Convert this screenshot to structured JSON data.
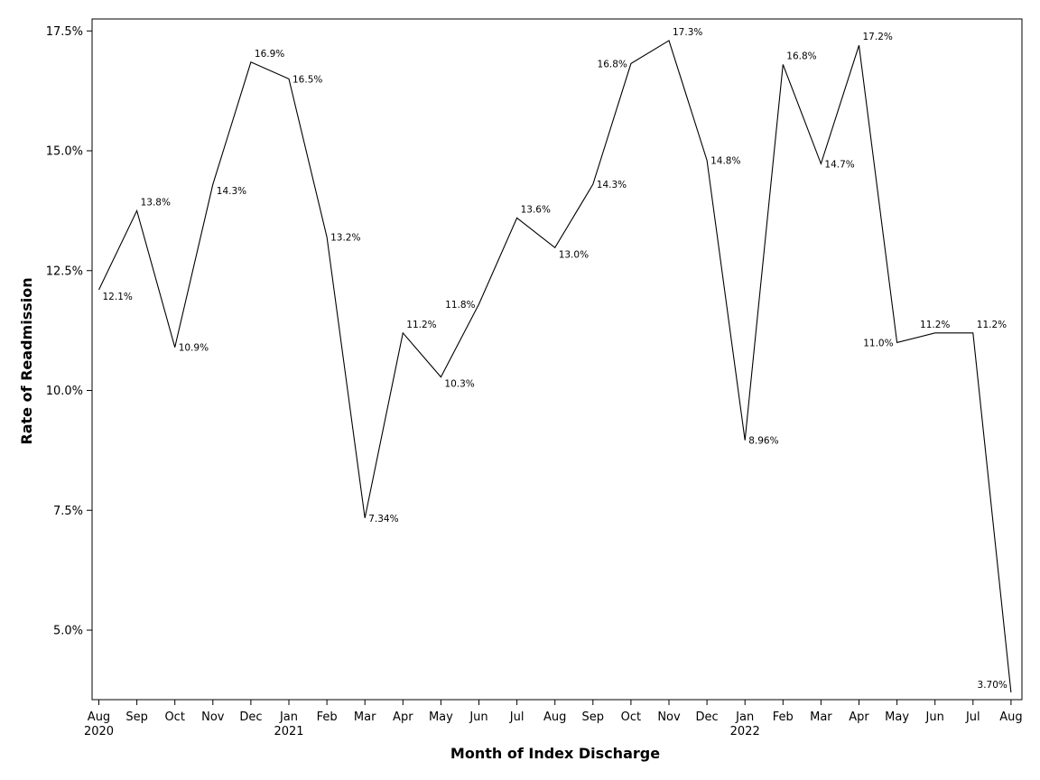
{
  "chart_data": {
    "type": "line",
    "title": "",
    "xlabel": "Month of Index Discharge",
    "ylabel": "Rate of Readmission",
    "x": [
      "2020-08",
      "2020-09",
      "2020-10",
      "2020-11",
      "2020-12",
      "2021-01",
      "2021-02",
      "2021-03",
      "2021-04",
      "2021-05",
      "2021-06",
      "2021-07",
      "2021-08",
      "2021-09",
      "2021-10",
      "2021-11",
      "2021-12",
      "2022-01",
      "2022-02",
      "2022-03",
      "2022-04",
      "2022-05",
      "2022-06",
      "2022-07",
      "2022-08"
    ],
    "x_tick_labels": [
      "Aug",
      "Sep",
      "Oct",
      "Nov",
      "Dec",
      "Jan",
      "Feb",
      "Mar",
      "Apr",
      "May",
      "Jun",
      "Jul",
      "Aug",
      "Sep",
      "Oct",
      "Nov",
      "Dec",
      "Jan",
      "Feb",
      "Mar",
      "Apr",
      "May",
      "Jun",
      "Jul",
      "Aug"
    ],
    "x_year_labels": [
      {
        "index": 0,
        "label": "2020"
      },
      {
        "index": 5,
        "label": "2021"
      },
      {
        "index": 17,
        "label": "2022"
      }
    ],
    "series": [
      {
        "values": [
          12.1,
          13.75,
          10.9,
          14.3,
          16.85,
          16.5,
          13.2,
          7.34,
          11.2,
          10.28,
          11.8,
          13.6,
          12.98,
          14.3,
          16.82,
          17.3,
          14.8,
          8.96,
          16.8,
          14.73,
          17.2,
          11.0,
          11.2,
          11.2,
          3.7
        ],
        "data_labels": [
          "12.1%",
          "13.8%",
          "10.9%",
          "14.3%",
          "16.9%",
          "16.5%",
          "13.2%",
          "7.34%",
          "11.2%",
          "10.3%",
          "11.8%",
          "13.6%",
          "13.0%",
          "14.3%",
          "16.8%",
          "17.3%",
          "14.8%",
          "8.96%",
          "16.8%",
          "14.7%",
          "17.2%",
          "11.0%",
          "11.2%",
          "11.2%",
          "3.70%"
        ],
        "label_positions": [
          "below-right",
          "above-right",
          "right",
          "below-right",
          "above-right",
          "right",
          "right",
          "right",
          "above-right",
          "below-right",
          "left",
          "above-right",
          "below-right",
          "right",
          "left",
          "above-right",
          "right",
          "right",
          "above-right",
          "right",
          "above-right",
          "left",
          "above",
          "above-right",
          "left"
        ],
        "color": "#000000"
      }
    ],
    "yticks": [
      5.0,
      7.5,
      10.0,
      12.5,
      15.0,
      17.5
    ],
    "ytick_labels": [
      "5.0%",
      "7.5%",
      "10.0%",
      "12.5%",
      "15.0%",
      "17.5%"
    ],
    "ylim": [
      3.55,
      17.75
    ],
    "grid": false,
    "legend": "none"
  }
}
